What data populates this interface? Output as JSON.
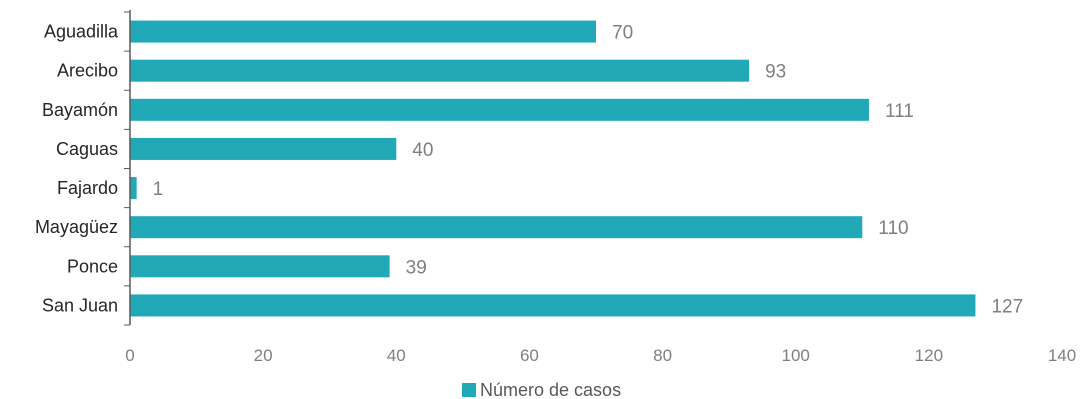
{
  "chart_data": {
    "type": "bar",
    "orientation": "horizontal",
    "categories": [
      "Aguadilla",
      "Arecibo",
      "Bayamón",
      "Caguas",
      "Fajardo",
      "Mayagüez",
      "Ponce",
      "San Juan"
    ],
    "series": [
      {
        "name": "Número de casos",
        "values": [
          70,
          93,
          111,
          40,
          1,
          110,
          39,
          127
        ],
        "color": "#22A9B8"
      }
    ],
    "xlim": [
      0,
      140
    ],
    "x_ticks": [
      0,
      20,
      40,
      60,
      80,
      100,
      120,
      140
    ],
    "data_labels": true,
    "grid": false,
    "legend": "bottom-center"
  }
}
